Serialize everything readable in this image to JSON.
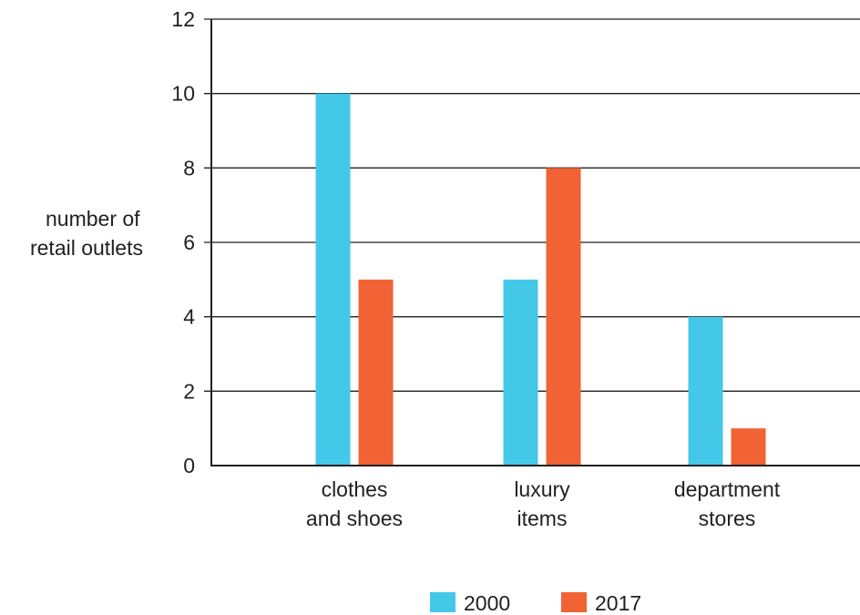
{
  "chart_data": {
    "type": "bar",
    "title": "",
    "xlabel": "",
    "ylabel": [
      "number of",
      "retail outlets"
    ],
    "categories": [
      [
        "clothes",
        "and shoes"
      ],
      [
        "luxury",
        "items"
      ],
      [
        "department",
        "stores"
      ]
    ],
    "series": [
      {
        "name": "2000",
        "values": [
          10,
          5,
          4
        ],
        "color": "#44c8e8"
      },
      {
        "name": "2017",
        "values": [
          5,
          8,
          1
        ],
        "color": "#f16334"
      }
    ],
    "ylim": [
      0,
      12
    ],
    "yticks": [
      0,
      2,
      4,
      6,
      8,
      10,
      12
    ],
    "grid": true,
    "legend": "bottom"
  }
}
